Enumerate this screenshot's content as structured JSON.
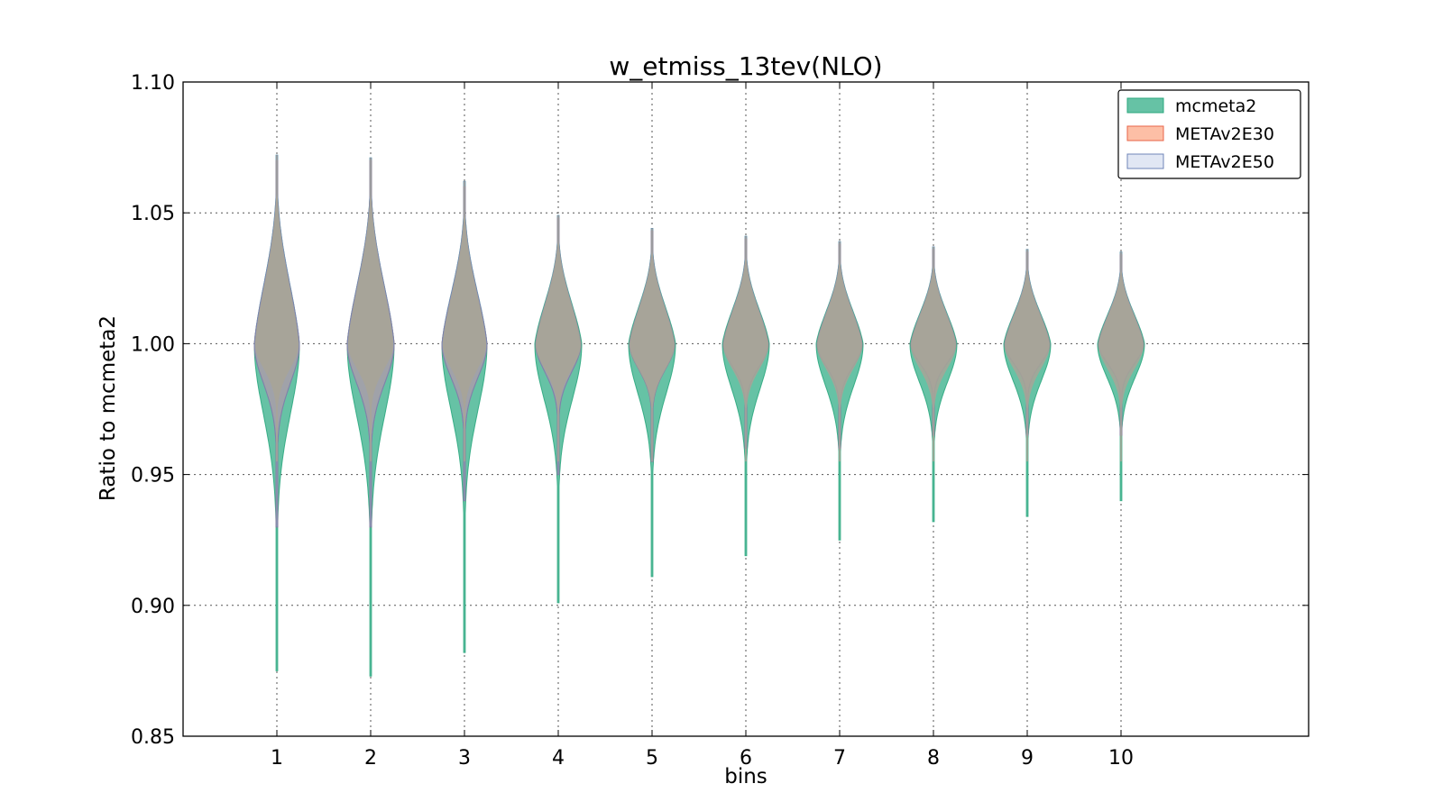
{
  "chart_data": {
    "type": "violin",
    "title": "w_etmiss_13tev(NLO)",
    "xlabel": "bins",
    "ylabel": "Ratio to mcmeta2",
    "categories": [
      "1",
      "2",
      "3",
      "4",
      "5",
      "6",
      "7",
      "8",
      "9",
      "10"
    ],
    "xlim": [
      0,
      12
    ],
    "ylim": [
      0.85,
      1.1
    ],
    "yticks": [
      "0.85",
      "0.90",
      "0.95",
      "1.00",
      "1.05",
      "1.10"
    ],
    "grid": true,
    "legend_position": "top-right",
    "series": [
      {
        "name": "mcmeta2",
        "fill": "#66c2a5",
        "stroke": "#2ca87f",
        "violins": [
          {
            "min": 0.875,
            "max": 1.072,
            "center": 1.0,
            "halfwidth": 0.24
          },
          {
            "min": 0.873,
            "max": 1.071,
            "center": 1.0,
            "halfwidth": 0.25
          },
          {
            "min": 0.882,
            "max": 1.062,
            "center": 1.0,
            "halfwidth": 0.24
          },
          {
            "min": 0.901,
            "max": 1.049,
            "center": 1.0,
            "halfwidth": 0.25
          },
          {
            "min": 0.911,
            "max": 1.044,
            "center": 1.0,
            "halfwidth": 0.25
          },
          {
            "min": 0.919,
            "max": 1.041,
            "center": 1.0,
            "halfwidth": 0.25
          },
          {
            "min": 0.925,
            "max": 1.039,
            "center": 1.0,
            "halfwidth": 0.25
          },
          {
            "min": 0.932,
            "max": 1.037,
            "center": 1.0,
            "halfwidth": 0.25
          },
          {
            "min": 0.934,
            "max": 1.036,
            "center": 1.0,
            "halfwidth": 0.25
          },
          {
            "min": 0.94,
            "max": 1.035,
            "center": 1.0,
            "halfwidth": 0.25
          }
        ]
      },
      {
        "name": "METAv2E30",
        "fill": "#fc8d62",
        "stroke": "#e8664a",
        "violins": [
          {
            "min": 0.93,
            "max": 1.07,
            "center": 1.0,
            "halfwidth": 0.24
          },
          {
            "min": 0.93,
            "max": 1.07,
            "center": 1.0,
            "halfwidth": 0.25
          },
          {
            "min": 0.94,
            "max": 1.06,
            "center": 1.0,
            "halfwidth": 0.24
          },
          {
            "min": 0.95,
            "max": 1.048,
            "center": 1.0,
            "halfwidth": 0.24
          },
          {
            "min": 0.955,
            "max": 1.043,
            "center": 1.0,
            "halfwidth": 0.24
          },
          {
            "min": 0.96,
            "max": 1.04,
            "center": 1.0,
            "halfwidth": 0.24
          },
          {
            "min": 0.96,
            "max": 1.038,
            "center": 1.0,
            "halfwidth": 0.24
          },
          {
            "min": 0.965,
            "max": 1.036,
            "center": 1.0,
            "halfwidth": 0.24
          },
          {
            "min": 0.965,
            "max": 1.035,
            "center": 1.0,
            "halfwidth": 0.24
          },
          {
            "min": 0.965,
            "max": 1.034,
            "center": 1.0,
            "halfwidth": 0.24
          }
        ]
      },
      {
        "name": "METAv2E50",
        "fill": "#8da0cb",
        "stroke": "#6f84b8",
        "violins": [
          {
            "min": 0.93,
            "max": 1.072,
            "center": 1.0,
            "halfwidth": 0.24
          },
          {
            "min": 0.93,
            "max": 1.071,
            "center": 1.0,
            "halfwidth": 0.25
          },
          {
            "min": 0.94,
            "max": 1.062,
            "center": 1.0,
            "halfwidth": 0.24
          },
          {
            "min": 0.95,
            "max": 1.049,
            "center": 1.0,
            "halfwidth": 0.24
          },
          {
            "min": 0.955,
            "max": 1.044,
            "center": 1.0,
            "halfwidth": 0.24
          },
          {
            "min": 0.96,
            "max": 1.041,
            "center": 1.0,
            "halfwidth": 0.24
          },
          {
            "min": 0.96,
            "max": 1.039,
            "center": 1.0,
            "halfwidth": 0.24
          },
          {
            "min": 0.965,
            "max": 1.037,
            "center": 1.0,
            "halfwidth": 0.24
          },
          {
            "min": 0.965,
            "max": 1.036,
            "center": 1.0,
            "halfwidth": 0.24
          },
          {
            "min": 0.965,
            "max": 1.035,
            "center": 1.0,
            "halfwidth": 0.24
          }
        ]
      }
    ],
    "legend": [
      {
        "label": "mcmeta2",
        "fill": "#66c2a5",
        "stroke": "#2ca87f"
      },
      {
        "label": "METAv2E30",
        "fill": "#fdbfa6",
        "stroke": "#e8664a"
      },
      {
        "label": "METAv2E50",
        "fill": "#e1e7f4",
        "stroke": "#6f84b8"
      }
    ],
    "overlap_color": "#a8a496"
  }
}
